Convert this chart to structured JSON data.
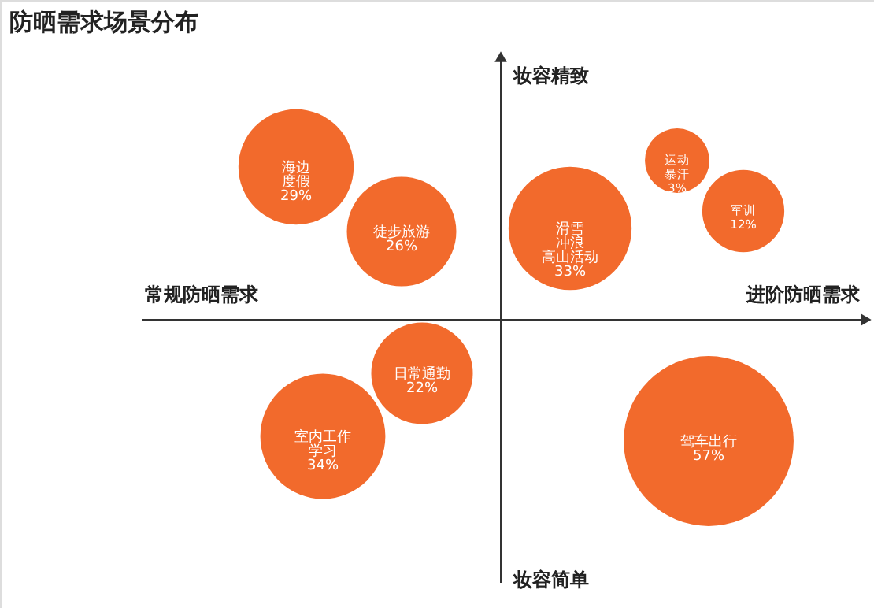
{
  "chart_data": {
    "type": "other",
    "title": "防晒需求场景分布",
    "categories": [
      "海边度假",
      "徒步旅游",
      "滑雪冲浪高山活动",
      "运动暴汗",
      "军训",
      "日常通勤",
      "室内工作学习",
      "驾车出行"
    ],
    "values": [
      29,
      26,
      33,
      3,
      12,
      22,
      34,
      57
    ],
    "value_labels": [
      "29%",
      "26%",
      "33%",
      "3%",
      "12%",
      "22%",
      "34%",
      "57%"
    ],
    "color": "#f26a2c",
    "annotations": [
      "妆容精致",
      "妆容简单",
      "常规防晒需求",
      "进阶防晒需求"
    ]
  }
}
